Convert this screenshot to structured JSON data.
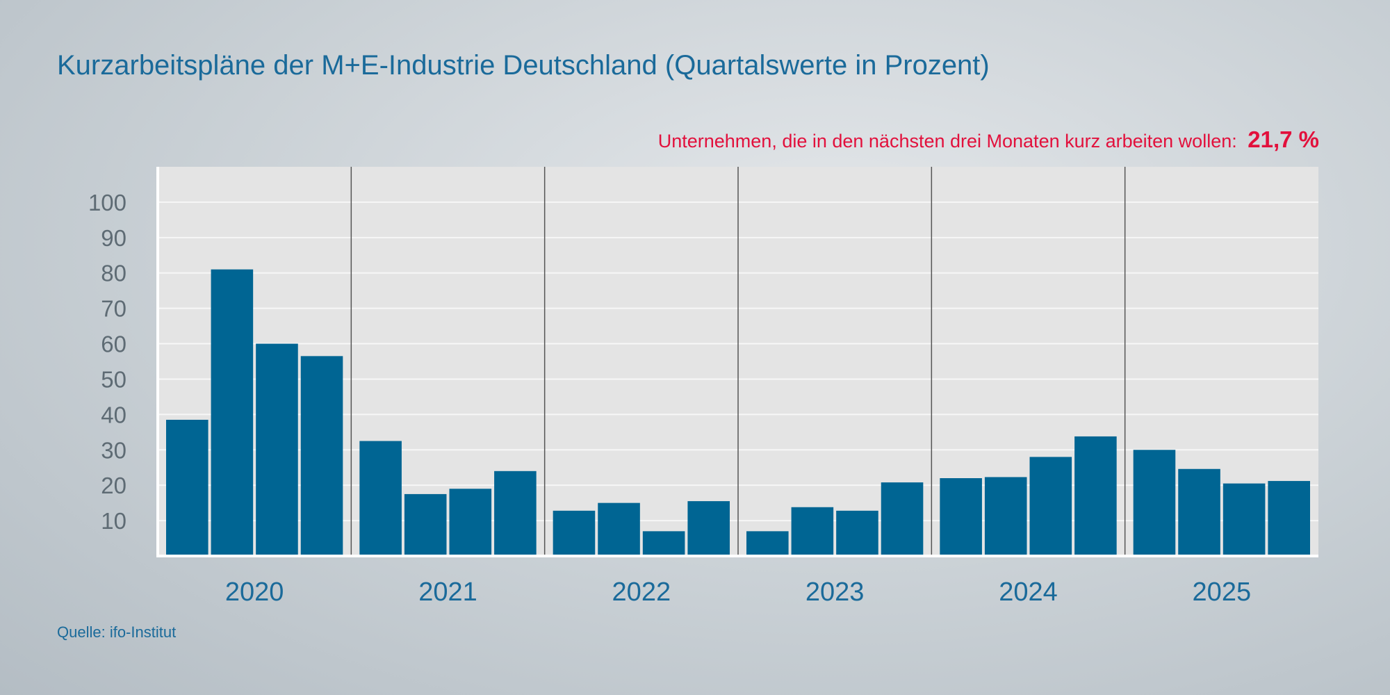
{
  "title": "Kurzarbeitspläne der M+E-Industrie Deutschland (Quartalswerte in Prozent)",
  "callout": {
    "label": "Unternehmen, die in den nächsten drei Monaten kurz arbeiten wollen:",
    "value": "21,7 %"
  },
  "source": "Quelle: ifo-Institut",
  "colors": {
    "bar": "#006593",
    "title": "#1a6a9a",
    "highlight": "#e2103c",
    "plot_background": "#e4e4e4"
  },
  "chart_data": {
    "type": "bar",
    "title": "Kurzarbeitspläne der M+E-Industrie Deutschland (Quartalswerte in Prozent)",
    "xlabel": "",
    "ylabel": "",
    "ylim": [
      0,
      110
    ],
    "yticks": [
      10,
      20,
      30,
      40,
      50,
      60,
      70,
      80,
      90,
      100
    ],
    "grid": true,
    "groups": [
      {
        "label": "2020",
        "values": [
          38.5,
          81,
          60,
          56.5
        ]
      },
      {
        "label": "2021",
        "values": [
          32.5,
          17.5,
          19,
          24
        ]
      },
      {
        "label": "2022",
        "values": [
          12.8,
          15,
          7,
          15.5
        ]
      },
      {
        "label": "2023",
        "values": [
          7,
          13.8,
          12.8,
          20.8
        ]
      },
      {
        "label": "2024",
        "values": [
          22,
          22.3,
          28,
          33.8
        ]
      },
      {
        "label": "2025",
        "values": [
          30,
          24.6,
          20.5,
          21.2
        ]
      }
    ]
  }
}
